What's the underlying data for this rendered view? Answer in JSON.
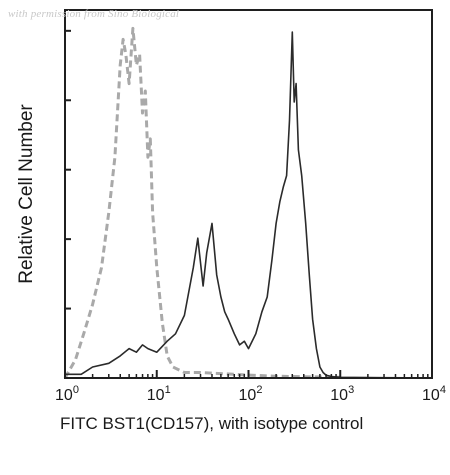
{
  "watermark": "with permission from Sino Biological",
  "chart_data": {
    "type": "line",
    "xlabel": "FITC BST1(CD157), with isotype control",
    "ylabel": "Relative Cell Number",
    "x_scale": "log",
    "xlim": [
      1,
      10000
    ],
    "ylim": [
      0,
      100
    ],
    "x_ticks": [
      {
        "base": "10",
        "exp": "0",
        "value": 1
      },
      {
        "base": "10",
        "exp": "1",
        "value": 10
      },
      {
        "base": "10",
        "exp": "2",
        "value": 100
      },
      {
        "base": "10",
        "exp": "3",
        "value": 1000
      },
      {
        "base": "10",
        "exp": "4",
        "value": 10000
      }
    ],
    "grid": false,
    "legend": "none",
    "series": [
      {
        "id": "isotype",
        "style": "dashed",
        "color": "#a9a9a9",
        "x": [
          1.0,
          1.3,
          1.6,
          2.0,
          2.5,
          3.0,
          3.5,
          4.0,
          4.3,
          4.6,
          5.0,
          5.5,
          6.0,
          6.5,
          7.0,
          7.5,
          8.0,
          8.5,
          9.0,
          10.0,
          11.5,
          13.0,
          15.0,
          20.0,
          30.0,
          50.0,
          100.0,
          200.0,
          500.0,
          1000.0
        ],
        "y": [
          0,
          5,
          12,
          20,
          30,
          45,
          60,
          85,
          92,
          88,
          80,
          95,
          85,
          88,
          72,
          78,
          60,
          65,
          45,
          30,
          15,
          6,
          3,
          1.5,
          1.5,
          1.2,
          0.8,
          0.5,
          0.3,
          0.2
        ]
      },
      {
        "id": "bst1",
        "style": "solid",
        "color": "#2b2b2b",
        "x": [
          1.0,
          1.5,
          2.0,
          3.0,
          4.0,
          5.0,
          6.0,
          7.0,
          8.0,
          10.0,
          13.0,
          16.0,
          20.0,
          25.0,
          28.0,
          32.0,
          35.0,
          40.0,
          45.0,
          50.0,
          55.0,
          60.0,
          70.0,
          80.0,
          90.0,
          100.0,
          120.0,
          140.0,
          160.0,
          180.0,
          200.0,
          220.0,
          240.0,
          260.0,
          280.0,
          300.0,
          315.0,
          330.0,
          350.0,
          380.0,
          420.0,
          460.0,
          500.0,
          550.0,
          600.0,
          650.0,
          700.0,
          800.0,
          1000.0,
          2000.0,
          5000.0,
          10000.0
        ],
        "y": [
          1,
          1,
          3,
          4,
          6,
          8,
          7,
          9,
          8,
          7,
          10,
          12,
          17,
          30,
          38,
          25,
          34,
          42,
          28,
          22,
          18,
          16,
          12,
          9,
          10,
          8,
          12,
          18,
          22,
          32,
          42,
          48,
          52,
          55,
          70,
          94,
          75,
          80,
          62,
          55,
          42,
          28,
          16,
          8,
          3,
          1.5,
          0.8,
          0.4,
          0.2,
          0.1,
          0.05,
          0
        ]
      }
    ]
  }
}
